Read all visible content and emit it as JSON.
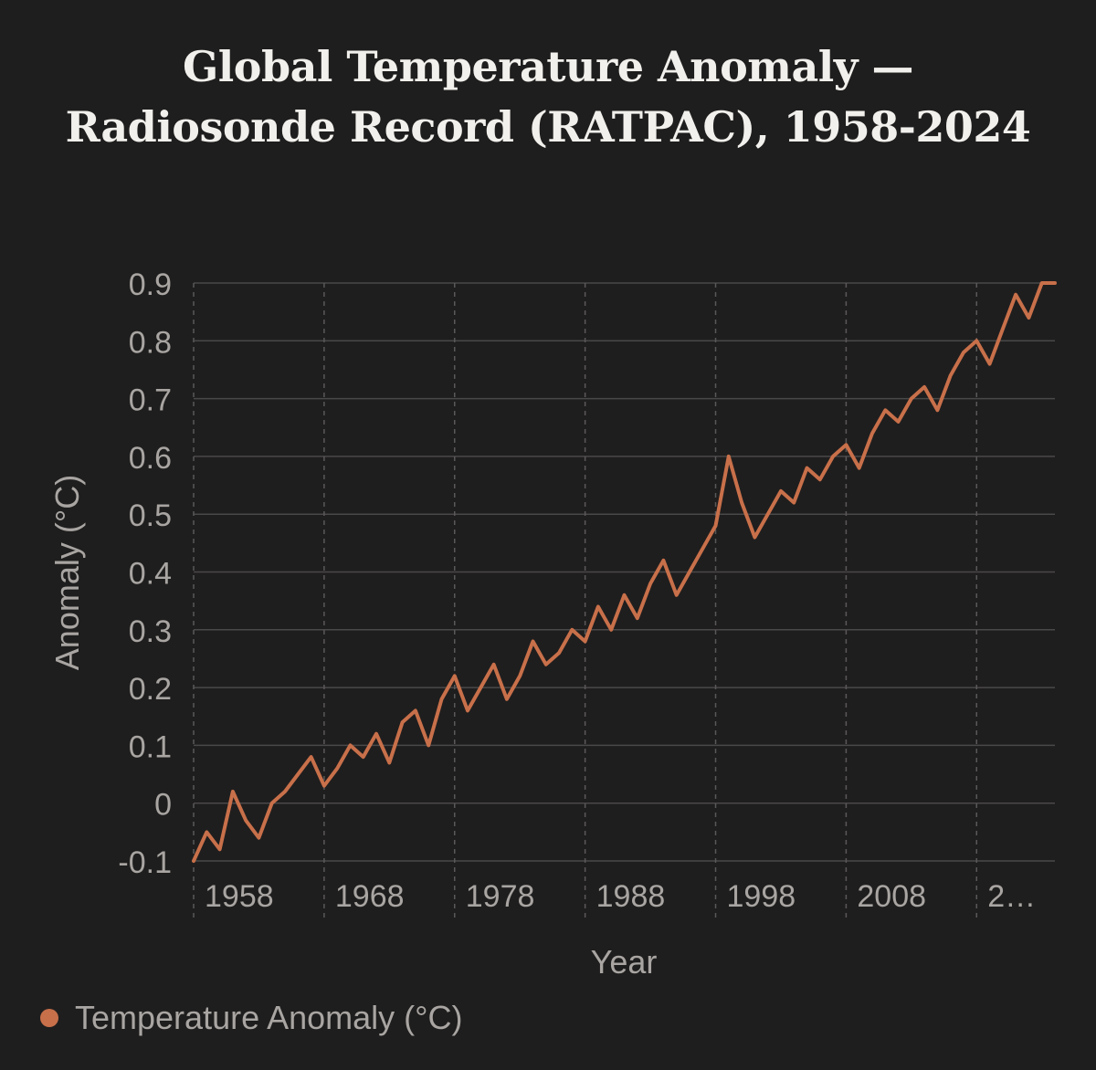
{
  "chart_data": {
    "type": "line",
    "title": "Global Temperature Anomaly — Radiosonde Record (RATPAC), 1958-2024",
    "xlabel": "Year",
    "ylabel": "Anomaly (°C)",
    "ylim": [
      -0.1,
      0.9
    ],
    "yticks": [
      "-0.1",
      "0",
      "0.1",
      "0.2",
      "0.3",
      "0.4",
      "0.5",
      "0.6",
      "0.7",
      "0.8",
      "0.9"
    ],
    "xtick_labels": [
      "1958",
      "1968",
      "1978",
      "1988",
      "1998",
      "2008",
      "2…"
    ],
    "grid": true,
    "legend_position": "bottom-left",
    "x": [
      1958,
      1959,
      1960,
      1961,
      1962,
      1963,
      1964,
      1965,
      1966,
      1967,
      1968,
      1969,
      1970,
      1971,
      1972,
      1973,
      1974,
      1975,
      1976,
      1977,
      1978,
      1979,
      1980,
      1981,
      1982,
      1983,
      1984,
      1985,
      1986,
      1987,
      1988,
      1989,
      1990,
      1991,
      1992,
      1993,
      1994,
      1995,
      1996,
      1997,
      1998,
      1999,
      2000,
      2001,
      2002,
      2003,
      2004,
      2005,
      2006,
      2007,
      2008,
      2009,
      2010,
      2011,
      2012,
      2013,
      2014,
      2015,
      2016,
      2017,
      2018,
      2019,
      2020,
      2021,
      2022,
      2023,
      2024
    ],
    "series": [
      {
        "name": "Temperature Anomaly (°C)",
        "color": "#c8704a",
        "values": [
          -0.1,
          -0.05,
          -0.08,
          0.02,
          -0.03,
          -0.06,
          0.0,
          0.02,
          0.05,
          0.08,
          0.03,
          0.06,
          0.1,
          0.08,
          0.12,
          0.07,
          0.14,
          0.16,
          0.1,
          0.18,
          0.22,
          0.16,
          0.2,
          0.24,
          0.18,
          0.22,
          0.28,
          0.24,
          0.26,
          0.3,
          0.28,
          0.34,
          0.3,
          0.36,
          0.32,
          0.38,
          0.42,
          0.36,
          0.4,
          0.44,
          0.48,
          0.6,
          0.52,
          0.46,
          0.5,
          0.54,
          0.52,
          0.58,
          0.56,
          0.6,
          0.62,
          0.58,
          0.64,
          0.68,
          0.66,
          0.7,
          0.72,
          0.68,
          0.74,
          0.78,
          0.8,
          0.76,
          0.82,
          0.88,
          0.84,
          0.9,
          0.92
        ]
      }
    ]
  },
  "legend": {
    "label": "Temperature Anomaly (°C)",
    "color": "#c8704a"
  }
}
